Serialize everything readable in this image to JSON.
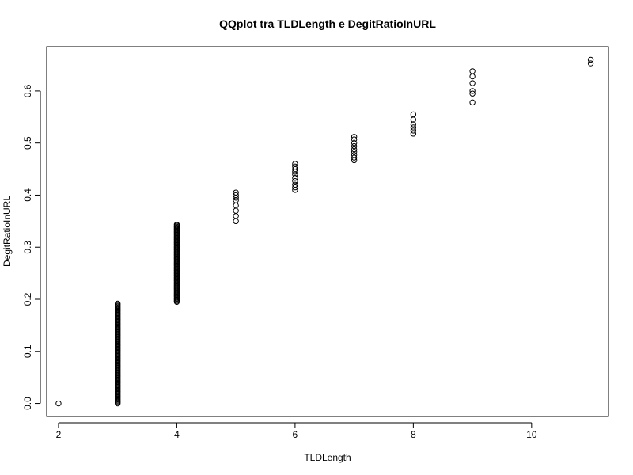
{
  "chart_data": {
    "type": "scatter",
    "title": "QQplot tra TLDLength e DegitRatioInURL",
    "xlabel": "TLDLength",
    "ylabel": "DegitRatioInURL",
    "xlim": [
      1.8,
      11.3
    ],
    "ylim": [
      -0.025,
      0.685
    ],
    "x_ticks": [
      2,
      4,
      6,
      8,
      10
    ],
    "y_ticks": [
      0.0,
      0.1,
      0.2,
      0.3,
      0.4,
      0.5,
      0.6
    ],
    "grid": false,
    "legend": "none",
    "marker": "open-circle",
    "groups": [
      {
        "x": 2,
        "y_min": 0.0,
        "y_max": 0.0
      },
      {
        "x": 3,
        "y_min": 0.0,
        "y_max": 0.193
      },
      {
        "x": 4,
        "y_min": 0.195,
        "y_max": 0.345
      },
      {
        "x": 5,
        "y_min": 0.35,
        "y_max": 0.405
      },
      {
        "x": 6,
        "y_min": 0.41,
        "y_max": 0.46
      },
      {
        "x": 7,
        "y_min": 0.467,
        "y_max": 0.512
      },
      {
        "x": 8,
        "y_min": 0.518,
        "y_max": 0.555
      },
      {
        "x": 9,
        "y_min": 0.578,
        "y_max": 0.638
      },
      {
        "x": 11,
        "y_min": 0.653,
        "y_max": 0.66
      }
    ],
    "points": [
      [
        2,
        0.0
      ],
      [
        5,
        0.35
      ],
      [
        5,
        0.36
      ],
      [
        5,
        0.37
      ],
      [
        5,
        0.38
      ],
      [
        5,
        0.39
      ],
      [
        5,
        0.395
      ],
      [
        5,
        0.4
      ],
      [
        5,
        0.405
      ],
      [
        6,
        0.41
      ],
      [
        6,
        0.415
      ],
      [
        6,
        0.42
      ],
      [
        6,
        0.427
      ],
      [
        6,
        0.433
      ],
      [
        6,
        0.44
      ],
      [
        6,
        0.445
      ],
      [
        6,
        0.45
      ],
      [
        6,
        0.455
      ],
      [
        6,
        0.46
      ],
      [
        7,
        0.467
      ],
      [
        7,
        0.472
      ],
      [
        7,
        0.477
      ],
      [
        7,
        0.483
      ],
      [
        7,
        0.488
      ],
      [
        7,
        0.494
      ],
      [
        7,
        0.5
      ],
      [
        7,
        0.507
      ],
      [
        7,
        0.512
      ],
      [
        8,
        0.518
      ],
      [
        8,
        0.524
      ],
      [
        8,
        0.53
      ],
      [
        8,
        0.536
      ],
      [
        8,
        0.545
      ],
      [
        8,
        0.555
      ],
      [
        9,
        0.578
      ],
      [
        9,
        0.595
      ],
      [
        9,
        0.6
      ],
      [
        9,
        0.615
      ],
      [
        9,
        0.628
      ],
      [
        9,
        0.638
      ],
      [
        11,
        0.653
      ],
      [
        11,
        0.66
      ]
    ]
  }
}
